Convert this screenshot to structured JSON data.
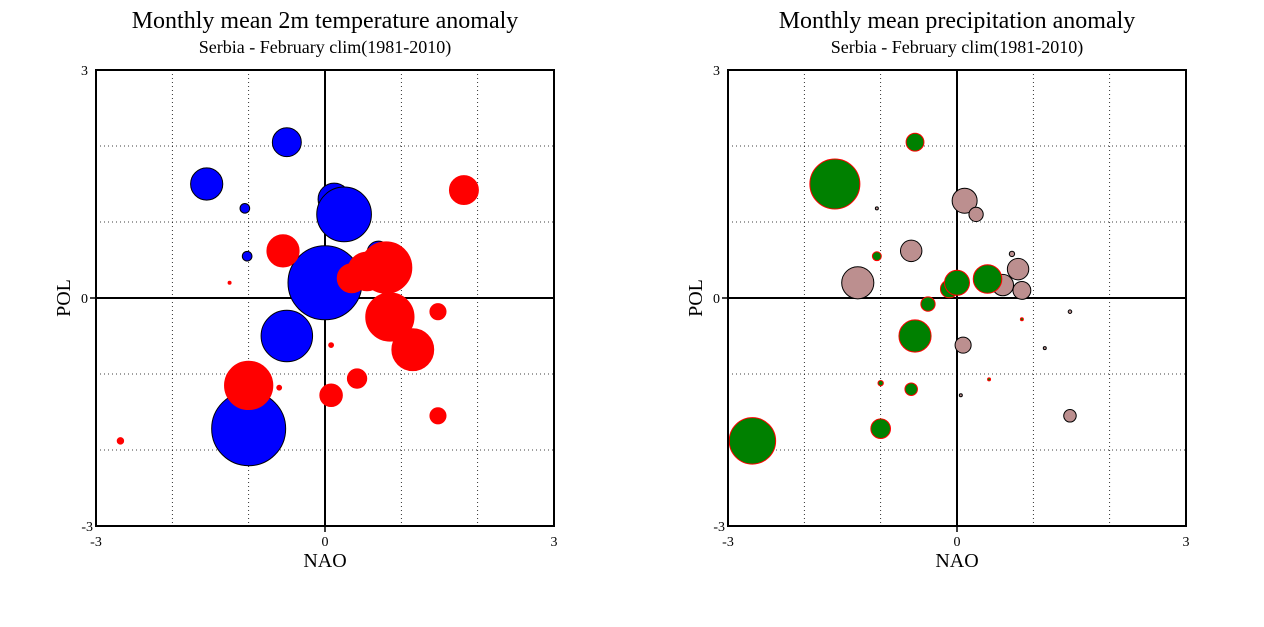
{
  "chart_data": [
    {
      "type": "scatter",
      "title": "Monthly mean 2m temperature anomaly",
      "subtitle": "Serbia - February  clim(1981-2010)",
      "xlabel": "NAO",
      "ylabel": "POL",
      "xlim": [
        -3,
        3
      ],
      "ylim": [
        -3,
        3
      ],
      "xticks": [
        "-3",
        "0",
        "3"
      ],
      "yticks": [
        "3",
        "0",
        "-3"
      ],
      "grid": true,
      "colors": {
        "positive": "#ff0000",
        "negative": "#0000ff"
      },
      "points": [
        {
          "x": -0.5,
          "y": 2.05,
          "value": -0.9,
          "sign": "negative"
        },
        {
          "x": -1.55,
          "y": 1.5,
          "value": -1.0,
          "sign": "negative"
        },
        {
          "x": -1.05,
          "y": 1.18,
          "value": -0.3,
          "sign": "negative"
        },
        {
          "x": -1.02,
          "y": 0.55,
          "value": -0.3,
          "sign": "negative"
        },
        {
          "x": 0.12,
          "y": 1.3,
          "value": -1.0,
          "sign": "negative"
        },
        {
          "x": 0.25,
          "y": 1.1,
          "value": -1.7,
          "sign": "negative"
        },
        {
          "x": 0.7,
          "y": 0.6,
          "value": -0.7,
          "sign": "negative"
        },
        {
          "x": 0.0,
          "y": 0.2,
          "value": -2.3,
          "sign": "negative"
        },
        {
          "x": -0.5,
          "y": -0.5,
          "value": -1.6,
          "sign": "negative"
        },
        {
          "x": -1.0,
          "y": -1.72,
          "value": -2.3,
          "sign": "negative"
        },
        {
          "x": 1.82,
          "y": 1.42,
          "value": 0.9,
          "sign": "positive"
        },
        {
          "x": -0.55,
          "y": 0.62,
          "value": 1.0,
          "sign": "positive"
        },
        {
          "x": 0.35,
          "y": 0.26,
          "value": 0.9,
          "sign": "positive"
        },
        {
          "x": 0.55,
          "y": 0.35,
          "value": 1.2,
          "sign": "positive"
        },
        {
          "x": 0.8,
          "y": 0.4,
          "value": 1.6,
          "sign": "positive"
        },
        {
          "x": 0.85,
          "y": -0.25,
          "value": 1.5,
          "sign": "positive"
        },
        {
          "x": 1.15,
          "y": -0.68,
          "value": 1.3,
          "sign": "positive"
        },
        {
          "x": 1.48,
          "y": -0.18,
          "value": 0.5,
          "sign": "positive"
        },
        {
          "x": 1.48,
          "y": -1.55,
          "value": 0.5,
          "sign": "positive"
        },
        {
          "x": 0.42,
          "y": -1.06,
          "value": 0.6,
          "sign": "positive"
        },
        {
          "x": 0.08,
          "y": -1.28,
          "value": 0.7,
          "sign": "positive"
        },
        {
          "x": 0.08,
          "y": -0.62,
          "value": 0.15,
          "sign": "positive"
        },
        {
          "x": -1.0,
          "y": -1.15,
          "value": 1.5,
          "sign": "positive"
        },
        {
          "x": -0.6,
          "y": -1.18,
          "value": 0.15,
          "sign": "positive"
        },
        {
          "x": -2.68,
          "y": -1.88,
          "value": 0.2,
          "sign": "positive"
        },
        {
          "x": -1.25,
          "y": 0.2,
          "value": 0.04,
          "sign": "positive"
        }
      ]
    },
    {
      "type": "scatter",
      "title": "Monthly mean precipitation anomaly",
      "subtitle": "Serbia - February  clim(1981-2010)",
      "xlabel": "NAO",
      "ylabel": "POL",
      "xlim": [
        -3,
        3
      ],
      "ylim": [
        -3,
        3
      ],
      "xticks": [
        "-3",
        "0",
        "3"
      ],
      "yticks": [
        "3",
        "0",
        "-3"
      ],
      "grid": true,
      "colors": {
        "positive": "#008000",
        "negative": "#bc8f8f",
        "positive_edge": "#ff0000",
        "negative_edge": "#000000"
      },
      "points": [
        {
          "x": -0.55,
          "y": 2.05,
          "value": 0.5,
          "sign": "positive"
        },
        {
          "x": -1.6,
          "y": 1.5,
          "value": 1.4,
          "sign": "positive"
        },
        {
          "x": -1.05,
          "y": 1.18,
          "value": 0.05,
          "sign": "negative"
        },
        {
          "x": -1.05,
          "y": 0.55,
          "value": 0.25,
          "sign": "positive"
        },
        {
          "x": -0.6,
          "y": 0.62,
          "value": 0.6,
          "sign": "negative"
        },
        {
          "x": 0.1,
          "y": 1.28,
          "value": 0.7,
          "sign": "negative"
        },
        {
          "x": 0.25,
          "y": 1.1,
          "value": 0.4,
          "sign": "negative"
        },
        {
          "x": 0.72,
          "y": 0.58,
          "value": 0.15,
          "sign": "negative"
        },
        {
          "x": 0.8,
          "y": 0.38,
          "value": 0.6,
          "sign": "negative"
        },
        {
          "x": 0.85,
          "y": 0.1,
          "value": 0.5,
          "sign": "negative"
        },
        {
          "x": 0.6,
          "y": 0.17,
          "value": 0.6,
          "sign": "negative"
        },
        {
          "x": -1.3,
          "y": 0.2,
          "value": 0.9,
          "sign": "negative"
        },
        {
          "x": -0.1,
          "y": 0.12,
          "value": 0.5,
          "sign": "positive"
        },
        {
          "x": 0.0,
          "y": 0.2,
          "value": 0.7,
          "sign": "positive"
        },
        {
          "x": 0.4,
          "y": 0.25,
          "value": 0.8,
          "sign": "positive"
        },
        {
          "x": -0.38,
          "y": -0.08,
          "value": 0.4,
          "sign": "positive"
        },
        {
          "x": -0.55,
          "y": -0.5,
          "value": 0.9,
          "sign": "positive"
        },
        {
          "x": 0.08,
          "y": -0.62,
          "value": 0.45,
          "sign": "negative"
        },
        {
          "x": 1.48,
          "y": -0.18,
          "value": 0.1,
          "sign": "negative"
        },
        {
          "x": 1.15,
          "y": -0.66,
          "value": 0.08,
          "sign": "negative"
        },
        {
          "x": 0.85,
          "y": -0.28,
          "value": 0.03,
          "sign": "positive"
        },
        {
          "x": 0.42,
          "y": -1.07,
          "value": 0.03,
          "sign": "positive"
        },
        {
          "x": 0.05,
          "y": -1.28,
          "value": 0.07,
          "sign": "negative"
        },
        {
          "x": 1.48,
          "y": -1.55,
          "value": 0.35,
          "sign": "negative"
        },
        {
          "x": -1.0,
          "y": -1.12,
          "value": 0.15,
          "sign": "positive"
        },
        {
          "x": -0.6,
          "y": -1.2,
          "value": 0.35,
          "sign": "positive"
        },
        {
          "x": -1.0,
          "y": -1.72,
          "value": 0.55,
          "sign": "positive"
        },
        {
          "x": -2.68,
          "y": -1.88,
          "value": 1.3,
          "sign": "positive"
        }
      ]
    }
  ]
}
